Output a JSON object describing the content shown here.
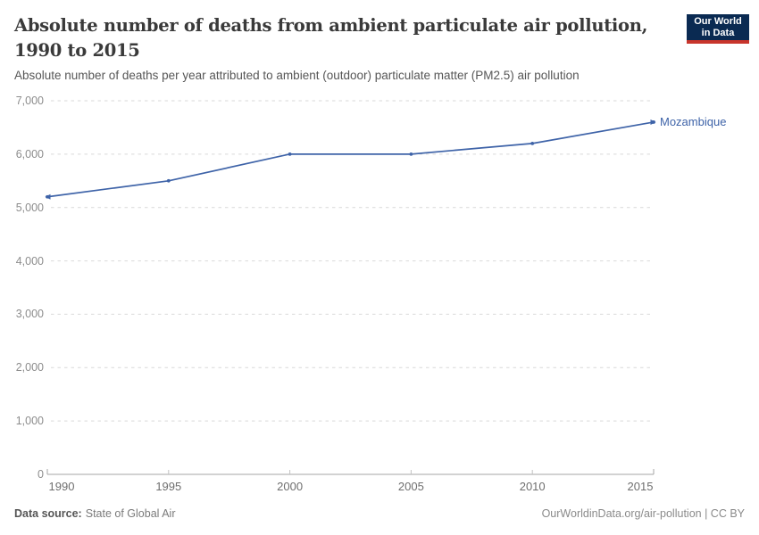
{
  "header": {
    "title_lines": [
      "Absolute number of deaths from ambient particulate air pollution,",
      "1990 to 2015"
    ],
    "subtitle": "Absolute number of deaths per year attributed to ambient (outdoor) particulate matter (PM2.5) air pollution"
  },
  "logo": {
    "line1": "Our World",
    "line2": "in Data",
    "bg_color": "#0a2a52",
    "bar_color": "#c8352c",
    "text_color": "#ffffff"
  },
  "chart_data": {
    "type": "line",
    "title": "Absolute number of deaths from ambient particulate air pollution, 1990 to 2015",
    "subtitle": "Absolute number of deaths per year attributed to ambient (outdoor) particulate matter (PM2.5) air pollution",
    "x": [
      1990,
      1995,
      2000,
      2005,
      2010,
      2015
    ],
    "series": [
      {
        "name": "Mozambique",
        "color": "#3e63a8",
        "values": [
          5200,
          5500,
          6000,
          6000,
          6200,
          6600
        ]
      }
    ],
    "xlim": [
      1990,
      2015
    ],
    "ylim": [
      0,
      7000
    ],
    "x_ticks": [
      1990,
      1995,
      2000,
      2005,
      2010,
      2015
    ],
    "y_ticks": [
      0,
      1000,
      2000,
      3000,
      4000,
      5000,
      6000,
      7000
    ],
    "grid": "horizontal-dashed",
    "legend": "end-of-line-label",
    "xlabel": "",
    "ylabel": ""
  },
  "colors": {
    "grid": "#d9d9d9",
    "axis": "#a5a5a5",
    "tick_stub": "#c2c2c2",
    "y_tick_label": "#8c8c8c",
    "x_tick_label": "#6e6e6e",
    "title": "#3a3a3a",
    "subtitle": "#565656",
    "series_blue": "#3e63a8"
  },
  "footer": {
    "source_label": "Data source:",
    "source_value": "State of Global Air",
    "credit": "OurWorldinData.org/air-pollution | CC BY"
  }
}
